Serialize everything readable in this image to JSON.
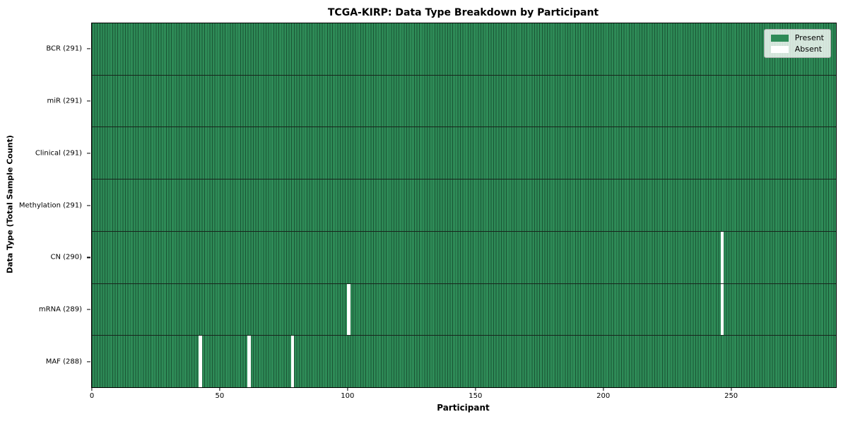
{
  "chart_data": {
    "type": "heatmap",
    "title": "TCGA-KIRP: Data Type Breakdown by Participant",
    "xlabel": "Participant",
    "ylabel": "Data Type (Total Sample Count)",
    "n_participants": 291,
    "xlim": [
      0,
      291
    ],
    "x_ticks": [
      0,
      50,
      100,
      150,
      200,
      250
    ],
    "grid": false,
    "rows": [
      {
        "name": "BCR",
        "label": "BCR (291)",
        "count": 291,
        "absent_participants": []
      },
      {
        "name": "miR",
        "label": "miR (291)",
        "count": 291,
        "absent_participants": []
      },
      {
        "name": "Clinical",
        "label": "Clinical (291)",
        "count": 291,
        "absent_participants": []
      },
      {
        "name": "Methylation",
        "label": "Methylation (291)",
        "count": 291,
        "absent_participants": []
      },
      {
        "name": "CN",
        "label": "CN (290)",
        "count": 290,
        "absent_participants": [
          246
        ]
      },
      {
        "name": "mRNA",
        "label": "mRNA (289)",
        "count": 289,
        "absent_participants": [
          100,
          246
        ]
      },
      {
        "name": "MAF",
        "label": "MAF (288)",
        "count": 288,
        "absent_participants": [
          42,
          61,
          78
        ]
      }
    ],
    "legend": {
      "position": "upper right",
      "entries": [
        {
          "label": "Present",
          "color": "#2e8b57"
        },
        {
          "label": "Absent",
          "color": "#ffffff"
        }
      ]
    },
    "colors": {
      "present": "#2e8b57",
      "absent": "#ffffff",
      "cell_edge": "rgba(5,30,18,0.5)",
      "row_separator": "#17251c",
      "axis": "#000000",
      "legend_border": "#adadad"
    }
  }
}
